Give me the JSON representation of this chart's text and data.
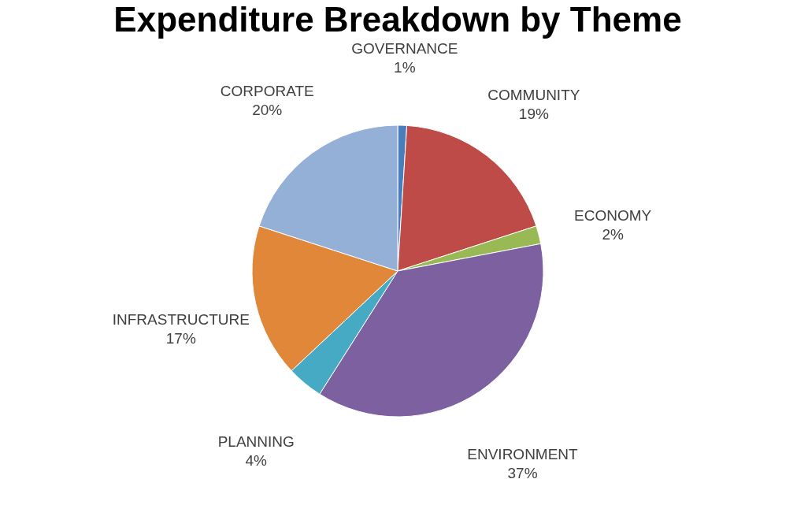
{
  "chart_data": {
    "type": "pie",
    "title": "Expenditure Breakdown by Theme",
    "categories": [
      "GOVERNANCE",
      "COMMUNITY",
      "ECONOMY",
      "ENVIRONMENT",
      "PLANNING",
      "INFRASTRUCTURE",
      "CORPORATE"
    ],
    "values": [
      1,
      19,
      2,
      37,
      4,
      17,
      20
    ],
    "value_labels": [
      "1%",
      "19%",
      "2%",
      "37%",
      "4%",
      "17%",
      "20%"
    ],
    "colors": [
      "#4a7ebb",
      "#be4b48",
      "#98b954",
      "#7d60a0",
      "#46aac5",
      "#e0873a",
      "#94b0d6"
    ],
    "legend": false
  }
}
